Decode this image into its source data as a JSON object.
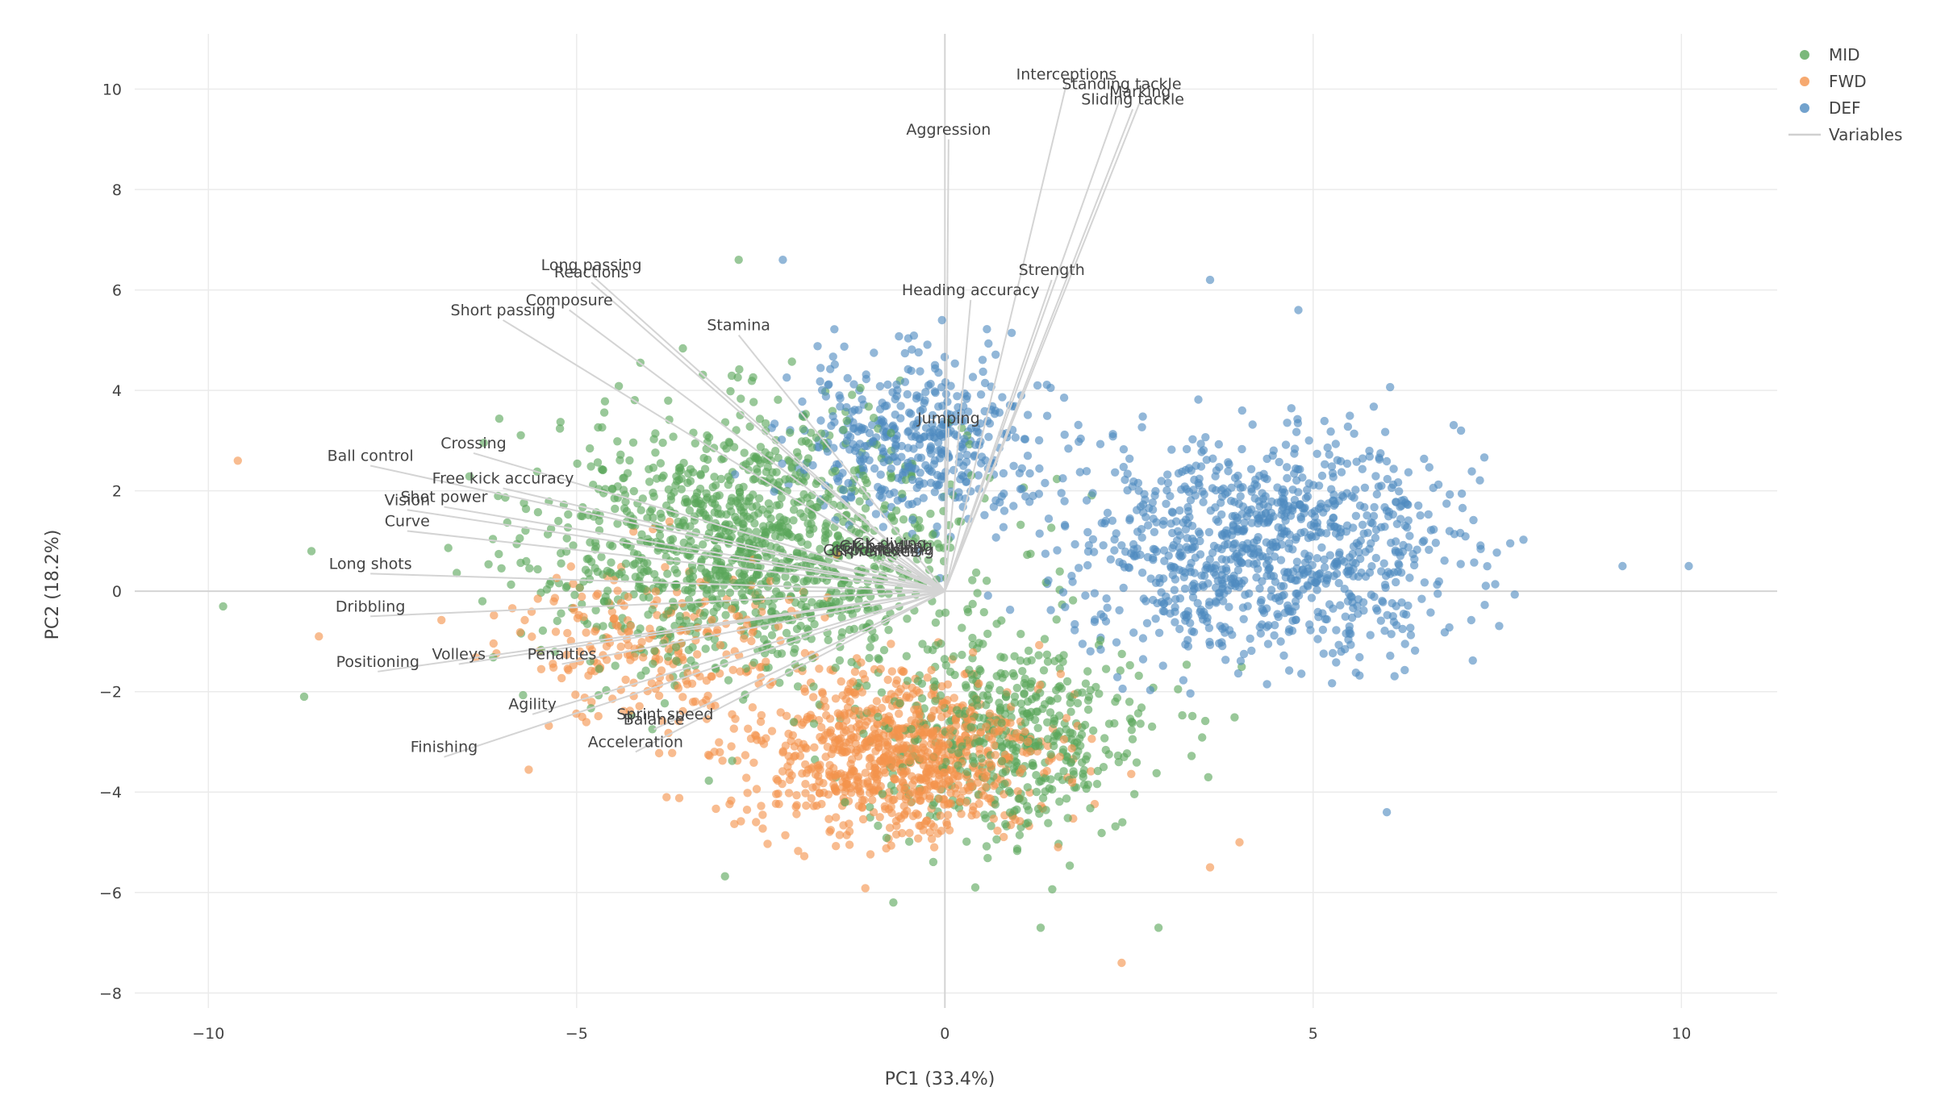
{
  "chart_data": {
    "type": "scatter",
    "xlabel": "PC1 (33.4%)",
    "ylabel": "PC2 (18.2%)",
    "xlim": [
      -11,
      11.3
    ],
    "ylim": [
      -8.3,
      11.1
    ],
    "x_ticks": [
      -10,
      -5,
      0,
      5,
      10
    ],
    "x_tick_labels": [
      "−10",
      "−5",
      "0",
      "5",
      "10"
    ],
    "y_ticks": [
      -8,
      -6,
      -4,
      -2,
      0,
      2,
      4,
      6,
      8,
      10
    ],
    "y_tick_labels": [
      "−8",
      "−6",
      "−4",
      "−2",
      "0",
      "2",
      "4",
      "6",
      "8",
      "10"
    ],
    "grid": true,
    "legend_position": "top-right",
    "legend": [
      {
        "name": "MID",
        "kind": "marker",
        "color": "#5aa65a"
      },
      {
        "name": "FWD",
        "kind": "marker",
        "color": "#f4934c"
      },
      {
        "name": "DEF",
        "kind": "marker",
        "color": "#4f8bc0"
      },
      {
        "name": "Variables",
        "kind": "line",
        "color": "#d0d0d0"
      }
    ],
    "series": [
      {
        "name": "MID",
        "color": "#5aa65a",
        "clusters": [
          {
            "cx": -2.6,
            "cy": 0.9,
            "sx": 2.3,
            "sy": 2.1,
            "n": 1250
          },
          {
            "cx": 0.9,
            "cy": -2.9,
            "sx": 1.6,
            "sy": 1.6,
            "n": 500
          }
        ],
        "extremes": [
          [
            -9.8,
            -0.3
          ],
          [
            -8.7,
            -2.1
          ],
          [
            -8.6,
            0.8
          ],
          [
            -2.8,
            6.6
          ],
          [
            -0.7,
            -6.2
          ],
          [
            2.9,
            -6.7
          ],
          [
            1.3,
            -6.7
          ]
        ]
      },
      {
        "name": "FWD",
        "color": "#f4934c",
        "clusters": [
          {
            "cx": -0.6,
            "cy": -3.3,
            "sx": 1.6,
            "sy": 1.3,
            "n": 900
          },
          {
            "cx": -3.9,
            "cy": -1.0,
            "sx": 1.7,
            "sy": 1.4,
            "n": 250
          }
        ],
        "extremes": [
          [
            -9.6,
            2.6
          ],
          [
            -8.5,
            -0.9
          ],
          [
            2.4,
            -7.4
          ],
          [
            3.6,
            -5.5
          ],
          [
            4.0,
            -5.0
          ]
        ]
      },
      {
        "name": "DEF",
        "color": "#4f8bc0",
        "clusters": [
          {
            "cx": 4.4,
            "cy": 0.9,
            "sx": 2.1,
            "sy": 1.7,
            "n": 1000
          },
          {
            "cx": -0.4,
            "cy": 3.0,
            "sx": 1.4,
            "sy": 1.3,
            "n": 450
          }
        ],
        "extremes": [
          [
            10.1,
            0.5
          ],
          [
            9.2,
            0.5
          ],
          [
            -2.2,
            6.6
          ],
          [
            3.6,
            6.2
          ],
          [
            4.8,
            5.6
          ],
          [
            6.0,
            -4.4
          ]
        ]
      }
    ],
    "variables": [
      {
        "name": "Interceptions",
        "x": 1.65,
        "y": 10.1
      },
      {
        "name": "Standing tackle",
        "x": 2.4,
        "y": 9.9
      },
      {
        "name": "Marking",
        "x": 2.65,
        "y": 9.75
      },
      {
        "name": "Sliding tackle",
        "x": 2.55,
        "y": 9.6
      },
      {
        "name": "Aggression",
        "x": 0.05,
        "y": 9.0
      },
      {
        "name": "Long passing",
        "x": -4.8,
        "y": 6.3
      },
      {
        "name": "Reactions",
        "x": -4.8,
        "y": 6.15
      },
      {
        "name": "Strength",
        "x": 1.45,
        "y": 6.2
      },
      {
        "name": "Heading accuracy",
        "x": 0.35,
        "y": 5.8
      },
      {
        "name": "Composure",
        "x": -5.1,
        "y": 5.6
      },
      {
        "name": "Short passing",
        "x": -6.0,
        "y": 5.4
      },
      {
        "name": "Stamina",
        "x": -2.8,
        "y": 5.1
      },
      {
        "name": "Jumping",
        "x": 0.05,
        "y": 3.25
      },
      {
        "name": "Crossing",
        "x": -6.4,
        "y": 2.75
      },
      {
        "name": "Ball control",
        "x": -7.8,
        "y": 2.5
      },
      {
        "name": "Free kick accuracy",
        "x": -6.0,
        "y": 2.05
      },
      {
        "name": "Shot power",
        "x": -6.8,
        "y": 1.68
      },
      {
        "name": "Vision",
        "x": -7.3,
        "y": 1.62
      },
      {
        "name": "Curve",
        "x": -7.3,
        "y": 1.2
      },
      {
        "name": "Long shots",
        "x": -7.8,
        "y": 0.35
      },
      {
        "name": "GK diving",
        "x": -0.75,
        "y": 0.75
      },
      {
        "name": "GK handling",
        "x": -0.8,
        "y": 0.7
      },
      {
        "name": "GK kicking",
        "x": -0.85,
        "y": 0.65
      },
      {
        "name": "GK positioning",
        "x": -0.9,
        "y": 0.62
      },
      {
        "name": "GK reflexes",
        "x": -0.95,
        "y": 0.6
      },
      {
        "name": "Dribbling",
        "x": -7.8,
        "y": -0.5
      },
      {
        "name": "Volleys",
        "x": -6.6,
        "y": -1.45
      },
      {
        "name": "Penalties",
        "x": -5.2,
        "y": -1.45
      },
      {
        "name": "Positioning",
        "x": -7.7,
        "y": -1.6
      },
      {
        "name": "Agility",
        "x": -5.6,
        "y": -2.45
      },
      {
        "name": "Sprint speed",
        "x": -3.8,
        "y": -2.65
      },
      {
        "name": "Balance",
        "x": -3.95,
        "y": -2.75
      },
      {
        "name": "Acceleration",
        "x": -4.2,
        "y": -3.2
      },
      {
        "name": "Finishing",
        "x": -6.8,
        "y": -3.3
      }
    ]
  }
}
